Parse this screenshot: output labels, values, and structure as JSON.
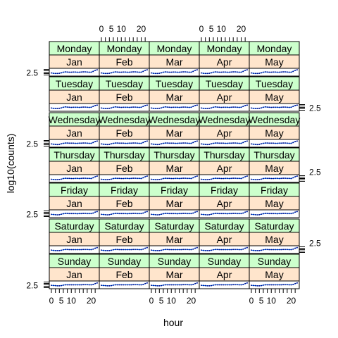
{
  "chart_data": {
    "type": "line",
    "layout": "trellis",
    "xlabel": "hour",
    "ylabel": "log10(counts)",
    "x_tick_labels": [
      "0",
      "5",
      "10",
      "20"
    ],
    "y_tick_label": "2.5",
    "xlim": [
      0,
      23
    ],
    "ylim": [
      2.3,
      2.7
    ],
    "strip_colors": {
      "day": "#ccffcc",
      "month": "#ffe5cc"
    },
    "line_color": "#0080ff",
    "point_color": "#000080",
    "days": [
      "Monday",
      "Tuesday",
      "Wednesday",
      "Thursday",
      "Friday",
      "Saturday",
      "Sunday"
    ],
    "months": [
      "Jan",
      "Feb",
      "Mar",
      "Apr",
      "May"
    ],
    "series": [
      {
        "day": "Monday",
        "values": [
          2.45,
          2.43,
          2.42,
          2.42,
          2.43,
          2.46,
          2.5,
          2.52,
          2.51,
          2.5,
          2.5,
          2.51,
          2.51,
          2.5,
          2.5,
          2.51,
          2.52,
          2.52,
          2.51,
          2.5,
          2.5,
          2.55,
          2.62,
          2.65
        ]
      },
      {
        "day": "Tuesday",
        "values": [
          2.46,
          2.44,
          2.43,
          2.43,
          2.44,
          2.47,
          2.51,
          2.53,
          2.52,
          2.51,
          2.5,
          2.51,
          2.51,
          2.51,
          2.5,
          2.51,
          2.52,
          2.52,
          2.51,
          2.5,
          2.51,
          2.56,
          2.62,
          2.64
        ]
      },
      {
        "day": "Wednesday",
        "values": [
          2.46,
          2.44,
          2.43,
          2.42,
          2.43,
          2.47,
          2.5,
          2.52,
          2.52,
          2.51,
          2.51,
          2.51,
          2.5,
          2.5,
          2.51,
          2.51,
          2.52,
          2.52,
          2.51,
          2.5,
          2.5,
          2.55,
          2.61,
          2.64
        ]
      },
      {
        "day": "Thursday",
        "values": [
          2.45,
          2.44,
          2.43,
          2.43,
          2.44,
          2.46,
          2.5,
          2.52,
          2.51,
          2.51,
          2.5,
          2.5,
          2.51,
          2.51,
          2.5,
          2.51,
          2.52,
          2.52,
          2.51,
          2.51,
          2.5,
          2.55,
          2.61,
          2.65
        ]
      },
      {
        "day": "Friday",
        "values": [
          2.46,
          2.45,
          2.44,
          2.43,
          2.44,
          2.47,
          2.5,
          2.52,
          2.52,
          2.51,
          2.51,
          2.51,
          2.51,
          2.5,
          2.51,
          2.51,
          2.52,
          2.52,
          2.51,
          2.51,
          2.51,
          2.54,
          2.6,
          2.64
        ]
      },
      {
        "day": "Saturday",
        "values": [
          2.47,
          2.45,
          2.44,
          2.44,
          2.44,
          2.46,
          2.49,
          2.51,
          2.51,
          2.5,
          2.5,
          2.5,
          2.5,
          2.5,
          2.5,
          2.5,
          2.51,
          2.51,
          2.51,
          2.5,
          2.5,
          2.53,
          2.59,
          2.63
        ]
      },
      {
        "day": "Sunday",
        "values": [
          2.47,
          2.46,
          2.45,
          2.44,
          2.44,
          2.45,
          2.48,
          2.5,
          2.5,
          2.5,
          2.5,
          2.5,
          2.5,
          2.5,
          2.5,
          2.5,
          2.51,
          2.51,
          2.51,
          2.5,
          2.5,
          2.52,
          2.58,
          2.62
        ]
      }
    ]
  }
}
